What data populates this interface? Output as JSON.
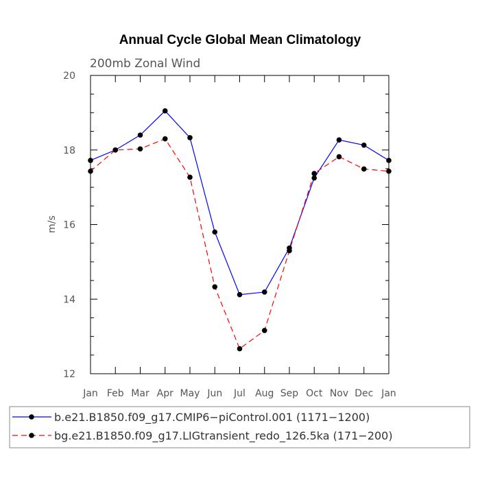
{
  "chart_data": {
    "type": "line",
    "title": "Annual Cycle Global Mean Climatology",
    "subtitle": "200mb Zonal Wind",
    "xlabel": "",
    "ylabel": "m/s",
    "categories": [
      "Jan",
      "Feb",
      "Mar",
      "Apr",
      "May",
      "Jun",
      "Jul",
      "Aug",
      "Sep",
      "Oct",
      "Nov",
      "Dec",
      "Jan"
    ],
    "ylim": [
      12,
      20
    ],
    "y_ticks": [
      12,
      14,
      16,
      18,
      20
    ],
    "grid": false,
    "legend_position": "bottom",
    "series": [
      {
        "name": "b.e21.B1850.f09_g17.CMIP6−piControl.001 (1171−1200)",
        "color": "#0000ff",
        "line_style": "solid",
        "marker": "filled-circle",
        "values": [
          17.72,
          18.0,
          18.4,
          19.05,
          18.33,
          15.8,
          14.12,
          14.19,
          15.37,
          17.25,
          18.27,
          18.13,
          17.72
        ]
      },
      {
        "name": "bg.e21.B1850.f09_g17.LIGtransient_redo_126.5ka (171−200)",
        "color": "#ff0000",
        "line_style": "dashed",
        "marker": "filled-circle",
        "values": [
          17.43,
          18.0,
          18.03,
          18.3,
          17.27,
          14.33,
          12.67,
          13.16,
          15.3,
          17.37,
          17.82,
          17.49,
          17.43
        ]
      }
    ]
  }
}
